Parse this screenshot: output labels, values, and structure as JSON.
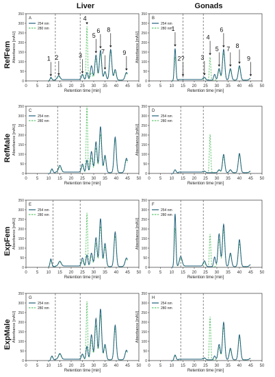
{
  "figure": {
    "column_titles": [
      "Liver",
      "Gonads"
    ],
    "row_labels": [
      "RefFem",
      "RefMale",
      "ExpFem",
      "ExpMale"
    ],
    "x_label": "Retention time [min]",
    "y_label": "Absorbance [mAU]",
    "legend": [
      "254 nm",
      "280 nm"
    ],
    "colors": {
      "nm254": "#1f5f7a",
      "nm280": "#5cc46b",
      "vline": "#555555",
      "axis": "#333333"
    }
  },
  "chart_data": [
    {
      "type": "line",
      "panel_label": "A",
      "x_ticks": [
        0,
        5,
        10,
        15,
        20,
        25,
        30,
        35,
        40,
        45,
        50
      ],
      "xlim": [
        0,
        50
      ],
      "y_ticks": [
        0,
        50,
        100,
        150,
        200,
        250,
        300,
        350
      ],
      "ylim": [
        0,
        350
      ],
      "vlines": [
        13,
        24
      ],
      "series": [
        {
          "name": "254 nm",
          "peaks": [
            [
              11,
              15,
              0.4
            ],
            [
              14.5,
              20,
              0.6
            ],
            [
              25,
              30,
              0.5
            ],
            [
              27,
              40,
              0.4
            ],
            [
              29,
              75,
              0.5
            ],
            [
              31,
              130,
              0.5
            ],
            [
              33,
              155,
              0.5
            ],
            [
              35,
              45,
              0.5
            ],
            [
              37.5,
              160,
              0.5
            ],
            [
              39.5,
              55,
              0.5
            ],
            [
              44.5,
              40,
              0.6
            ]
          ]
        },
        {
          "name": "280 nm",
          "peaks": [
            [
              11,
              10,
              0.4
            ],
            [
              14.5,
              15,
              0.6
            ],
            [
              25,
              25,
              0.5
            ],
            [
              27,
              280,
              0.3
            ],
            [
              29,
              40,
              0.5
            ],
            [
              31,
              110,
              0.5
            ],
            [
              33,
              135,
              0.5
            ],
            [
              35,
              40,
              0.5
            ],
            [
              37.5,
              150,
              0.5
            ],
            [
              39.5,
              45,
              0.5
            ],
            [
              44.5,
              35,
              0.6
            ]
          ]
        }
      ],
      "peak_labels": [
        {
          "text": "1",
          "x": 11,
          "y": 20
        },
        {
          "text": "2",
          "x": 14.5,
          "y": 25
        },
        {
          "text": "3",
          "x": 25,
          "y": 35
        },
        {
          "text": "4",
          "x": 27,
          "y": 290
        },
        {
          "text": "5",
          "x": 31,
          "y": 140
        },
        {
          "text": "6",
          "x": 33,
          "y": 165
        },
        {
          "text": "7",
          "x": 35,
          "y": 55
        },
        {
          "text": "8",
          "x": 37.5,
          "y": 170
        },
        {
          "text": "9",
          "x": 44.5,
          "y": 50
        }
      ]
    },
    {
      "type": "line",
      "panel_label": "B",
      "x_ticks": [
        0,
        5,
        10,
        15,
        20,
        25,
        30,
        35,
        40,
        45,
        50
      ],
      "xlim": [
        0,
        50
      ],
      "y_ticks": [
        0,
        50,
        100,
        150,
        200,
        250,
        300,
        350
      ],
      "ylim": [
        0,
        350
      ],
      "vlines": [
        15,
        24
      ],
      "series": [
        {
          "name": "254 nm",
          "peaks": [
            [
              11.5,
              165,
              0.35
            ],
            [
              24.5,
              15,
              0.5
            ],
            [
              29,
              30,
              0.4
            ],
            [
              31,
              60,
              0.5
            ],
            [
              33,
              160,
              0.5
            ],
            [
              36,
              60,
              0.5
            ],
            [
              40,
              75,
              0.5
            ],
            [
              45,
              10,
              0.6
            ]
          ]
        },
        {
          "name": "280 nm",
          "peaks": [
            [
              11.5,
              120,
              0.35
            ],
            [
              24.5,
              10,
              0.5
            ],
            [
              27,
              120,
              0.3
            ],
            [
              31,
              50,
              0.5
            ],
            [
              33,
              140,
              0.5
            ],
            [
              36,
              50,
              0.5
            ],
            [
              40,
              65,
              0.5
            ],
            [
              45,
              8,
              0.6
            ]
          ]
        }
      ],
      "peak_labels": [
        {
          "text": "1",
          "x": 11.5,
          "y": 175
        },
        {
          "text": "2?",
          "x": 15,
          "y": 20
        },
        {
          "text": "3",
          "x": 24.5,
          "y": 25
        },
        {
          "text": "4",
          "x": 27,
          "y": 130
        },
        {
          "text": "5",
          "x": 31,
          "y": 70
        },
        {
          "text": "6",
          "x": 33,
          "y": 170
        },
        {
          "text": "7",
          "x": 36,
          "y": 70
        },
        {
          "text": "8",
          "x": 40,
          "y": 85
        },
        {
          "text": "9",
          "x": 45,
          "y": 20
        }
      ]
    },
    {
      "type": "line",
      "panel_label": "C",
      "x_ticks": [
        0,
        5,
        10,
        15,
        20,
        25,
        30,
        35,
        40,
        45,
        50
      ],
      "xlim": [
        0,
        50
      ],
      "y_ticks": [
        0,
        50,
        100,
        150,
        200,
        250,
        300,
        350
      ],
      "ylim": [
        0,
        350
      ],
      "vlines": [
        14,
        24
      ],
      "series": [
        {
          "name": "254 nm",
          "peaks": [
            [
              11.5,
              20,
              0.4
            ],
            [
              15,
              35,
              0.6
            ],
            [
              25,
              45,
              0.5
            ],
            [
              27,
              65,
              0.4
            ],
            [
              29,
              110,
              0.5
            ],
            [
              31,
              160,
              0.5
            ],
            [
              33,
              240,
              0.5
            ],
            [
              35,
              90,
              0.5
            ],
            [
              39.5,
              185,
              0.5
            ],
            [
              44.5,
              75,
              0.6
            ]
          ]
        },
        {
          "name": "280 nm",
          "peaks": [
            [
              11.5,
              15,
              0.4
            ],
            [
              15,
              25,
              0.6
            ],
            [
              25,
              35,
              0.5
            ],
            [
              27,
              350,
              0.3
            ],
            [
              29,
              80,
              0.5
            ],
            [
              31,
              130,
              0.5
            ],
            [
              33,
              200,
              0.5
            ],
            [
              35,
              80,
              0.5
            ],
            [
              39.5,
              170,
              0.5
            ],
            [
              44.5,
              65,
              0.6
            ]
          ]
        }
      ]
    },
    {
      "type": "line",
      "panel_label": "D",
      "x_ticks": [
        0,
        5,
        10,
        15,
        20,
        25,
        30,
        35,
        40,
        45,
        50
      ],
      "xlim": [
        0,
        50
      ],
      "y_ticks": [
        0,
        50,
        100,
        150,
        200,
        250,
        300,
        350
      ],
      "ylim": [
        0,
        350
      ],
      "vlines": [
        14,
        24
      ],
      "series": [
        {
          "name": "254 nm",
          "peaks": [
            [
              11.5,
              15,
              0.4
            ],
            [
              24.5,
              8,
              0.5
            ],
            [
              31,
              15,
              0.5
            ],
            [
              33,
              95,
              0.5
            ],
            [
              36,
              15,
              0.5
            ],
            [
              40,
              100,
              0.5
            ],
            [
              45,
              8,
              0.6
            ]
          ]
        },
        {
          "name": "280 nm",
          "peaks": [
            [
              11.5,
              12,
              0.4
            ],
            [
              24.5,
              6,
              0.5
            ],
            [
              27,
              200,
              0.3
            ],
            [
              31,
              12,
              0.5
            ],
            [
              33,
              80,
              0.5
            ],
            [
              36,
              12,
              0.5
            ],
            [
              40,
              90,
              0.5
            ],
            [
              45,
              6,
              0.6
            ]
          ]
        }
      ]
    },
    {
      "type": "line",
      "panel_label": "E",
      "x_ticks": [
        0,
        5,
        10,
        15,
        20,
        25,
        30,
        35,
        40,
        45,
        50
      ],
      "xlim": [
        0,
        50
      ],
      "y_ticks": [
        0,
        50,
        100,
        150,
        200,
        250,
        300,
        350
      ],
      "ylim": [
        0,
        350
      ],
      "vlines": [
        12,
        24
      ],
      "series": [
        {
          "name": "254 nm",
          "peaks": [
            [
              11,
              40,
              0.4
            ],
            [
              15,
              25,
              0.6
            ],
            [
              25,
              45,
              0.5
            ],
            [
              27,
              60,
              0.4
            ],
            [
              29,
              70,
              0.5
            ],
            [
              31,
              150,
              0.5
            ],
            [
              33,
              250,
              0.5
            ],
            [
              35,
              120,
              0.5
            ],
            [
              39.5,
              180,
              0.5
            ],
            [
              44.5,
              45,
              0.6
            ]
          ]
        },
        {
          "name": "280 nm",
          "peaks": [
            [
              11,
              30,
              0.4
            ],
            [
              15,
              20,
              0.6
            ],
            [
              25,
              30,
              0.5
            ],
            [
              27,
              280,
              0.3
            ],
            [
              29,
              55,
              0.5
            ],
            [
              31,
              120,
              0.5
            ],
            [
              33,
              210,
              0.5
            ],
            [
              35,
              100,
              0.5
            ],
            [
              39.5,
              160,
              0.5
            ],
            [
              44.5,
              40,
              0.6
            ]
          ]
        }
      ]
    },
    {
      "type": "line",
      "panel_label": "F",
      "x_ticks": [
        0,
        5,
        10,
        15,
        20,
        25,
        30,
        35,
        40,
        45,
        50
      ],
      "xlim": [
        0,
        50
      ],
      "y_ticks": [
        0,
        50,
        100,
        150,
        200,
        250,
        300,
        350
      ],
      "ylim": [
        0,
        350
      ],
      "vlines": [
        14,
        24
      ],
      "series": [
        {
          "name": "254 nm",
          "peaks": [
            [
              11.5,
              275,
              0.35
            ],
            [
              14,
              50,
              0.6
            ],
            [
              24.5,
              30,
              0.5
            ],
            [
              29,
              50,
              0.4
            ],
            [
              31,
              170,
              0.5
            ],
            [
              33,
              220,
              0.5
            ],
            [
              36,
              70,
              0.5
            ],
            [
              40,
              140,
              0.5
            ],
            [
              45,
              10,
              0.6
            ]
          ]
        },
        {
          "name": "280 nm",
          "peaks": [
            [
              11.5,
              200,
              0.35
            ],
            [
              14,
              40,
              0.6
            ],
            [
              24.5,
              20,
              0.5
            ],
            [
              27,
              170,
              0.3
            ],
            [
              31,
              140,
              0.5
            ],
            [
              33,
              190,
              0.5
            ],
            [
              36,
              60,
              0.5
            ],
            [
              40,
              120,
              0.5
            ],
            [
              45,
              8,
              0.6
            ]
          ]
        }
      ]
    },
    {
      "type": "line",
      "panel_label": "G",
      "x_ticks": [
        0,
        5,
        10,
        15,
        20,
        25,
        30,
        35,
        40,
        45,
        50
      ],
      "xlim": [
        0,
        50
      ],
      "y_ticks": [
        0,
        50,
        100,
        150,
        200,
        250,
        300,
        350
      ],
      "ylim": [
        0,
        350
      ],
      "vlines": [
        13,
        24
      ],
      "series": [
        {
          "name": "254 nm",
          "peaks": [
            [
              11.5,
              20,
              0.4
            ],
            [
              15,
              30,
              0.6
            ],
            [
              25,
              30,
              0.5
            ],
            [
              27,
              70,
              0.4
            ],
            [
              29,
              130,
              0.5
            ],
            [
              31,
              215,
              0.5
            ],
            [
              33,
              265,
              0.5
            ],
            [
              35,
              80,
              0.5
            ],
            [
              39.5,
              180,
              0.5
            ],
            [
              44.5,
              50,
              0.6
            ]
          ]
        },
        {
          "name": "280 nm",
          "peaks": [
            [
              11.5,
              15,
              0.4
            ],
            [
              15,
              25,
              0.6
            ],
            [
              25,
              25,
              0.5
            ],
            [
              27,
              305,
              0.3
            ],
            [
              29,
              100,
              0.5
            ],
            [
              31,
              180,
              0.5
            ],
            [
              33,
              230,
              0.5
            ],
            [
              35,
              70,
              0.5
            ],
            [
              39.5,
              160,
              0.5
            ],
            [
              44.5,
              45,
              0.6
            ]
          ]
        }
      ]
    },
    {
      "type": "line",
      "panel_label": "H",
      "x_ticks": [
        0,
        5,
        10,
        15,
        20,
        25,
        30,
        35,
        40,
        45,
        50
      ],
      "xlim": [
        0,
        50
      ],
      "y_ticks": [
        0,
        50,
        100,
        150,
        200,
        250,
        300,
        350
      ],
      "ylim": [
        0,
        350
      ],
      "vlines": [
        14,
        24
      ],
      "series": [
        {
          "name": "254 nm",
          "peaks": [
            [
              11.5,
              25,
              0.4
            ],
            [
              24.5,
              10,
              0.5
            ],
            [
              29,
              20,
              0.4
            ],
            [
              31,
              80,
              0.5
            ],
            [
              33,
              195,
              0.5
            ],
            [
              36,
              60,
              0.5
            ],
            [
              40,
              130,
              0.5
            ],
            [
              45,
              8,
              0.6
            ]
          ]
        },
        {
          "name": "280 nm",
          "peaks": [
            [
              11.5,
              20,
              0.4
            ],
            [
              24.5,
              8,
              0.5
            ],
            [
              27,
              225,
              0.3
            ],
            [
              31,
              65,
              0.5
            ],
            [
              33,
              170,
              0.5
            ],
            [
              36,
              50,
              0.5
            ],
            [
              40,
              115,
              0.5
            ],
            [
              45,
              6,
              0.6
            ]
          ]
        }
      ]
    }
  ]
}
